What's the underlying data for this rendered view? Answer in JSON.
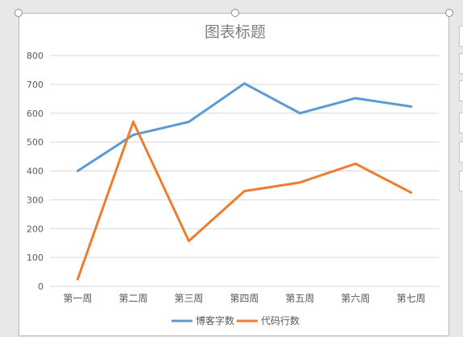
{
  "chart_data": {
    "type": "line",
    "title": "图表标题",
    "categories": [
      "第一周",
      "第二周",
      "第三周",
      "第四周",
      "第五周",
      "第六周",
      "第七周"
    ],
    "ylim": [
      0,
      800
    ],
    "yticks": [
      0,
      100,
      200,
      300,
      400,
      500,
      600,
      700,
      800
    ],
    "grid": true,
    "legend_position": "bottom",
    "series": [
      {
        "name": "博客字数",
        "color": "#5B9BD5",
        "values": [
          400,
          525,
          570,
          703,
          600,
          652,
          623
        ]
      },
      {
        "name": "代码行数",
        "color": "#ED7D31",
        "values": [
          25,
          570,
          157,
          330,
          360,
          425,
          325
        ]
      }
    ]
  }
}
